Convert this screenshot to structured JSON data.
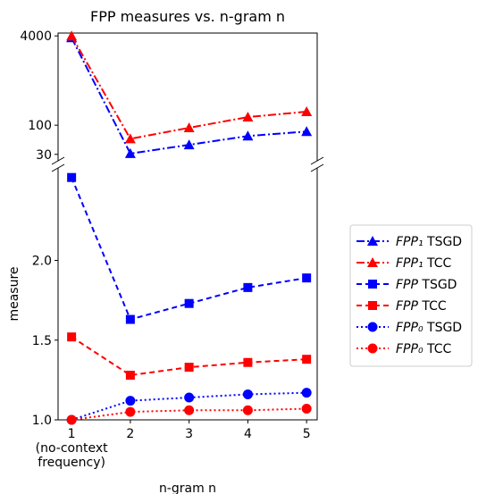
{
  "chart_data": {
    "type": "line",
    "title": "FPP measures vs. n-gram n",
    "x_label": "n-gram n",
    "y_label": "measure",
    "x": [
      1,
      2,
      3,
      4,
      5
    ],
    "xlim": [
      0.77,
      5.18
    ],
    "xticks": [
      {
        "value": 1,
        "label": "1\n(no-context\nfrequency)"
      },
      2,
      3,
      4,
      5
    ],
    "ylim": [
      1.0,
      2.58
    ],
    "yticks": [
      {
        "value": 1.0,
        "label": "1.0"
      },
      1.5,
      {
        "value": 2.0,
        "label": "2.0"
      }
    ],
    "y2lim": [
      23,
      4500
    ],
    "y2_scale": "log",
    "y2ticks": [
      30,
      100,
      4000
    ],
    "legend": "right",
    "series": [
      {
        "name": "FPP₁ TSGD",
        "color": "#0000ff",
        "linestyle": "dashdot",
        "marker": "triangle",
        "axis": "y2",
        "values": [
          3700,
          31,
          44.5,
          64,
          77
        ]
      },
      {
        "name": "FPP₁ TCC",
        "color": "#ff0000",
        "linestyle": "dashdot",
        "marker": "triangle",
        "axis": "y2",
        "values": [
          4000,
          57,
          90,
          140,
          175
        ]
      },
      {
        "name": "FPP TSGD",
        "color": "#0000ff",
        "linestyle": "dashed",
        "marker": "square",
        "values": [
          2.52,
          1.63,
          1.73,
          1.83,
          1.89
        ]
      },
      {
        "name": "FPP TCC",
        "color": "#ff0000",
        "linestyle": "dashed",
        "marker": "square",
        "values": [
          1.52,
          1.28,
          1.33,
          1.36,
          1.38
        ]
      },
      {
        "name": "FPP₀ TSGD",
        "color": "#0000ff",
        "linestyle": "dotted",
        "marker": "circle",
        "values": [
          1.0,
          1.12,
          1.14,
          1.16,
          1.17
        ]
      },
      {
        "name": "FPP₀ TCC",
        "color": "#ff0000",
        "linestyle": "dotted",
        "marker": "circle",
        "values": [
          1.0,
          1.05,
          1.06,
          1.06,
          1.07
        ]
      }
    ]
  }
}
